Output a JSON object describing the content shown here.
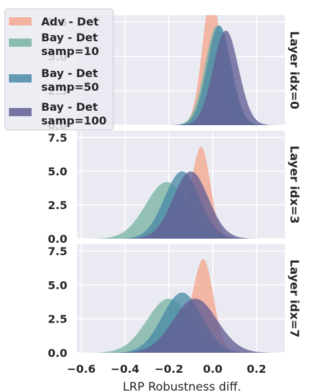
{
  "chart_data": {
    "type": "area",
    "subtype": "faceted-kde",
    "xlabel": "LRP Robustness diff.",
    "xlim": [
      -0.62,
      0.33
    ],
    "ylim": [
      0,
      8
    ],
    "x_ticks": [
      -0.6,
      -0.4,
      -0.2,
      0.0,
      0.2
    ],
    "x_tick_labels": [
      "−0.6",
      "−0.4",
      "−0.2",
      "0.0",
      "0.2"
    ],
    "y_ticks": [
      0,
      2.5,
      5,
      7.5
    ],
    "y_tick_labels": [
      "0.0",
      "2.5",
      "5.0",
      "7.5"
    ],
    "grid": true,
    "legend": {
      "placement": "top-left",
      "entries": [
        {
          "label": "Adv - Det",
          "color": "#f3a78e"
        },
        {
          "label": "Bay - Det\nsamp=10",
          "color": "#79b3a4"
        },
        {
          "label": "Bay - Det\nsamp=50",
          "color": "#4a8aa6"
        },
        {
          "label": "Bay - Det\nsamp=100",
          "color": "#615e95"
        }
      ]
    },
    "panels": [
      {
        "label": "Layer idx=0",
        "series": [
          {
            "name": "Adv - Det",
            "color": "#f3a78e",
            "components": [
              {
                "w": 1.0,
                "mu": -0.005,
                "sd": 0.042
              }
            ]
          },
          {
            "name": "Bay - Det samp=10",
            "color": "#79b3a4",
            "components": [
              {
                "w": 1.0,
                "mu": 0.02,
                "sd": 0.055
              }
            ]
          },
          {
            "name": "Bay - Det samp=50",
            "color": "#4a8aa6",
            "components": [
              {
                "w": 1.0,
                "mu": 0.03,
                "sd": 0.055
              }
            ]
          },
          {
            "name": "Bay - Det samp=100",
            "color": "#615e95",
            "components": [
              {
                "w": 1.0,
                "mu": 0.06,
                "sd": 0.058
              }
            ]
          }
        ]
      },
      {
        "label": "Layer idx=3",
        "series": [
          {
            "name": "Adv - Det",
            "color": "#f3a78e",
            "components": [
              {
                "w": 0.62,
                "mu": -0.05,
                "sd": 0.04
              },
              {
                "w": 0.38,
                "mu": -0.17,
                "sd": 0.08
              }
            ]
          },
          {
            "name": "Bay - Det samp=10",
            "color": "#79b3a4",
            "components": [
              {
                "w": 1.0,
                "mu": -0.21,
                "sd": 0.095
              }
            ]
          },
          {
            "name": "Bay - Det samp=50",
            "color": "#4a8aa6",
            "components": [
              {
                "w": 1.0,
                "mu": -0.14,
                "sd": 0.08
              }
            ]
          },
          {
            "name": "Bay - Det samp=100",
            "color": "#615e95",
            "components": [
              {
                "w": 1.0,
                "mu": -0.1,
                "sd": 0.08
              }
            ]
          }
        ]
      },
      {
        "label": "Layer idx=7",
        "series": [
          {
            "name": "Adv - Det",
            "color": "#f3a78e",
            "components": [
              {
                "w": 0.7,
                "mu": -0.04,
                "sd": 0.045
              },
              {
                "w": 0.3,
                "mu": -0.14,
                "sd": 0.08
              }
            ]
          },
          {
            "name": "Bay - Det samp=10",
            "color": "#79b3a4",
            "components": [
              {
                "w": 1.0,
                "mu": -0.2,
                "sd": 0.1
              }
            ]
          },
          {
            "name": "Bay - Det samp=50",
            "color": "#4a8aa6",
            "components": [
              {
                "w": 1.0,
                "mu": -0.14,
                "sd": 0.09
              }
            ]
          },
          {
            "name": "Bay - Det samp=100",
            "color": "#615e95",
            "components": [
              {
                "w": 1.0,
                "mu": -0.08,
                "sd": 0.1
              }
            ]
          }
        ]
      }
    ]
  }
}
